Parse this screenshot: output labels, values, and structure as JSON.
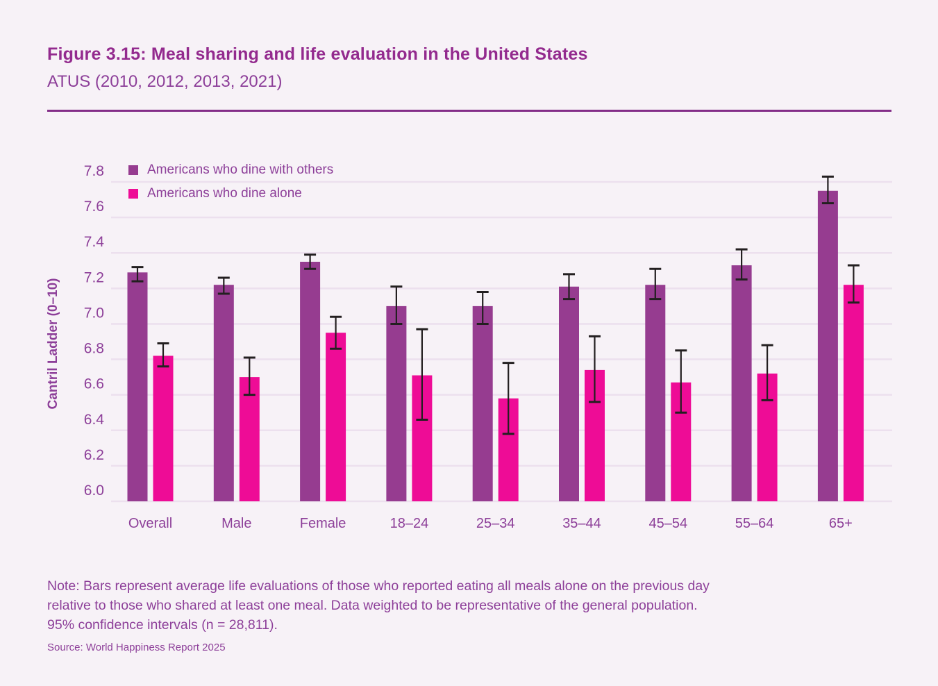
{
  "header": {
    "title": "Figure 3.15: Meal sharing and life evaluation in the United States",
    "subtitle": "ATUS (2010, 2012, 2013, 2021)"
  },
  "colors": {
    "background": "#f7f2f7",
    "title": "#932a8e",
    "text_purple": "#8d3f99",
    "rule": "#842e88",
    "gridline": "#ece0ee",
    "error_bar": "#231f20",
    "dine_with_others": "#963c90",
    "dine_alone": "#ee0c96"
  },
  "chart_data": {
    "type": "bar",
    "categories": [
      "Overall",
      "Male",
      "Female",
      "18–24",
      "25–34",
      "35–44",
      "45–54",
      "55–64",
      "65+"
    ],
    "series": [
      {
        "name": "Americans who dine with others",
        "color": "#963c90",
        "values": [
          7.29,
          7.22,
          7.35,
          7.1,
          7.1,
          7.21,
          7.22,
          7.33,
          7.75
        ],
        "ci_low": [
          7.24,
          7.17,
          7.31,
          7.0,
          7.0,
          7.14,
          7.14,
          7.25,
          7.68
        ],
        "ci_high": [
          7.32,
          7.26,
          7.39,
          7.21,
          7.18,
          7.28,
          7.31,
          7.42,
          7.83
        ]
      },
      {
        "name": "Americans who dine alone",
        "color": "#ee0c96",
        "values": [
          6.82,
          6.7,
          6.95,
          6.71,
          6.58,
          6.74,
          6.67,
          6.72,
          7.22
        ],
        "ci_low": [
          6.76,
          6.6,
          6.86,
          6.46,
          6.38,
          6.56,
          6.5,
          6.57,
          7.12
        ],
        "ci_high": [
          6.89,
          6.81,
          7.04,
          6.97,
          6.78,
          6.93,
          6.85,
          6.88,
          7.33
        ]
      }
    ],
    "title": "",
    "xlabel": "",
    "ylabel": "Cantril Ladder (0–10)",
    "ylim": [
      6.0,
      7.8
    ],
    "ytick_step": 0.2,
    "grid": true,
    "legend_position": "top-left",
    "error_bars": "95% confidence intervals"
  },
  "note": {
    "lines": [
      "Note: Bars represent average life evaluations of those who reported eating all meals alone on the previous day",
      "relative to those who shared at least one meal. Data weighted to be representative of the general population.",
      "95% confidence intervals (n = 28,811)."
    ]
  },
  "source": "Source: World Happiness Report 2025"
}
